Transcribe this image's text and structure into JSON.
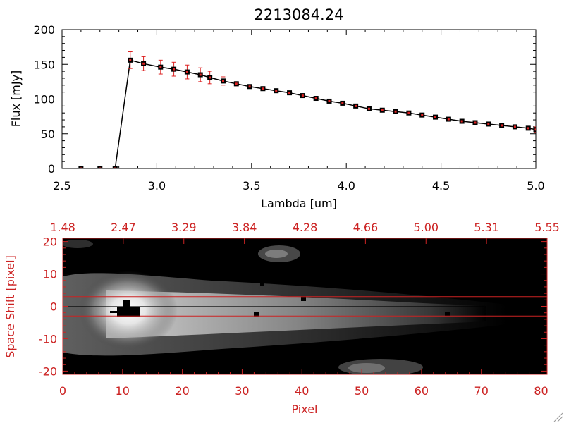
{
  "chart_data": [
    {
      "type": "line",
      "title": "2213084.24",
      "xlabel": "Lambda [um]",
      "ylabel": "Flux [mJy]",
      "xlim": [
        2.5,
        5.0
      ],
      "ylim": [
        0,
        200
      ],
      "xticks": [
        "2.5",
        "3.0",
        "3.5",
        "4.0",
        "4.5",
        "5.0"
      ],
      "xtick_values": [
        2.5,
        3.0,
        3.5,
        4.0,
        4.5,
        5.0
      ],
      "yticks": [
        "0",
        "50",
        "100",
        "150",
        "200"
      ],
      "ytick_values": [
        0,
        50,
        100,
        150,
        200
      ],
      "line_color": "#000000",
      "errorbar_color": "#dd2222",
      "grid": false,
      "series": [
        {
          "x": [
            2.6,
            2.7,
            2.78,
            2.86,
            2.93,
            3.02,
            3.09,
            3.16,
            3.23,
            3.28,
            3.35,
            3.42,
            3.49,
            3.56,
            3.63,
            3.7,
            3.77,
            3.84,
            3.91,
            3.98,
            4.05,
            4.12,
            4.19,
            4.26,
            4.33,
            4.4,
            4.47,
            4.54,
            4.61,
            4.68,
            4.75,
            4.82,
            4.89,
            4.96,
            5.0
          ],
          "y": [
            0,
            0,
            0,
            156,
            151,
            146,
            143,
            139,
            135,
            131,
            126,
            122,
            118,
            115,
            112,
            109,
            105,
            101,
            97,
            94,
            90,
            86,
            84,
            82,
            80,
            77,
            74,
            71,
            68,
            66,
            64,
            62,
            60,
            58,
            56
          ],
          "err": [
            0,
            0,
            0,
            12,
            10,
            10,
            10,
            10,
            10,
            9,
            6,
            3,
            2,
            2,
            2,
            2,
            2,
            2,
            2,
            2,
            2,
            2,
            2,
            2,
            2,
            2,
            2,
            2,
            2,
            2,
            2,
            2,
            2,
            2,
            4
          ]
        }
      ]
    },
    {
      "type": "heatmap",
      "xlabel": "Pixel",
      "ylabel": "Space Shift [pixel]",
      "xlim": [
        0,
        81
      ],
      "ylim": [
        -21,
        21
      ],
      "xticks": [
        "0",
        "10",
        "20",
        "30",
        "40",
        "50",
        "60",
        "70",
        "80"
      ],
      "xtick_values": [
        0,
        10,
        20,
        30,
        40,
        50,
        60,
        70,
        80
      ],
      "yticks": [
        "-20",
        "-10",
        "0",
        "10",
        "20"
      ],
      "ytick_values": [
        -20,
        -10,
        0,
        10,
        20
      ],
      "top_ticks": [
        "1.48",
        "2.47",
        "3.29",
        "3.84",
        "4.28",
        "4.66",
        "5.00",
        "5.31",
        "5.55"
      ],
      "axis_color": "#cc2222",
      "extraction_lines": [
        3,
        -3
      ],
      "trace_center": 0
    }
  ]
}
